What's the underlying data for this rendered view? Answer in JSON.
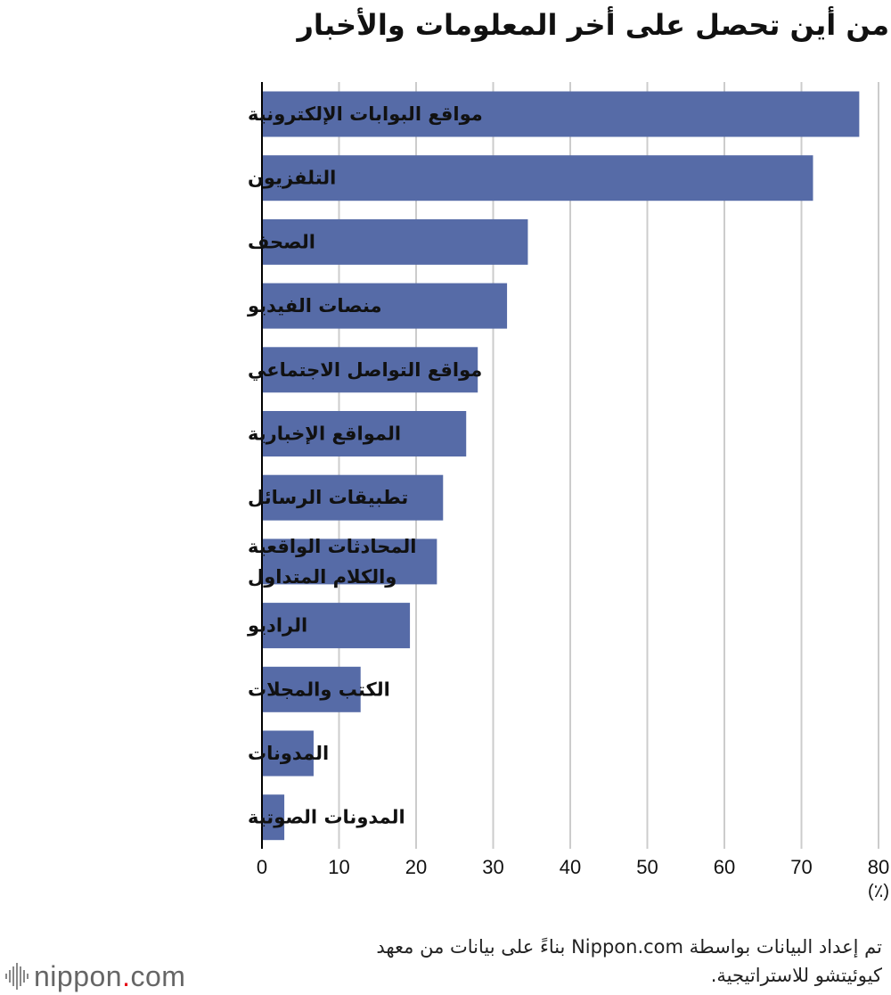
{
  "title": "من أين تحصل على أخر المعلومات والأخبار",
  "source_note": "تم إعداد البيانات بواسطة Nippon.com بناءً على بيانات من معهد كيوئيتشو للاستراتيجية.",
  "logo": {
    "text_before": "nippon",
    "text_dot": ".",
    "text_after": "com"
  },
  "colors": {
    "bar": "#566ba7",
    "grid": "#cccccc",
    "axis": "#000000"
  },
  "chart_data": {
    "type": "bar",
    "orientation": "horizontal",
    "categories": [
      [
        "مواقع البوابات الإلكترونية"
      ],
      [
        "التلفزيون"
      ],
      [
        "الصحف"
      ],
      [
        "منصات الفيديو"
      ],
      [
        "مواقع التواصل الاجتماعي"
      ],
      [
        "المواقع الإخبارية"
      ],
      [
        "تطبيقات الرسائل"
      ],
      [
        "المحادثات الواقعية",
        "والكلام المتداول"
      ],
      [
        "الراديو"
      ],
      [
        "الكتب والمجلات"
      ],
      [
        "المدونات"
      ],
      [
        "المدونات الصوتية"
      ]
    ],
    "values": [
      77.5,
      71.5,
      34.5,
      31.8,
      28.0,
      26.5,
      23.5,
      22.7,
      19.2,
      12.8,
      6.7,
      2.9
    ],
    "xlim": [
      0,
      80
    ],
    "xticks": [
      0,
      10,
      20,
      30,
      40,
      50,
      60,
      70,
      80
    ],
    "xunit": "(٪)",
    "grid": true,
    "legend": "none"
  }
}
